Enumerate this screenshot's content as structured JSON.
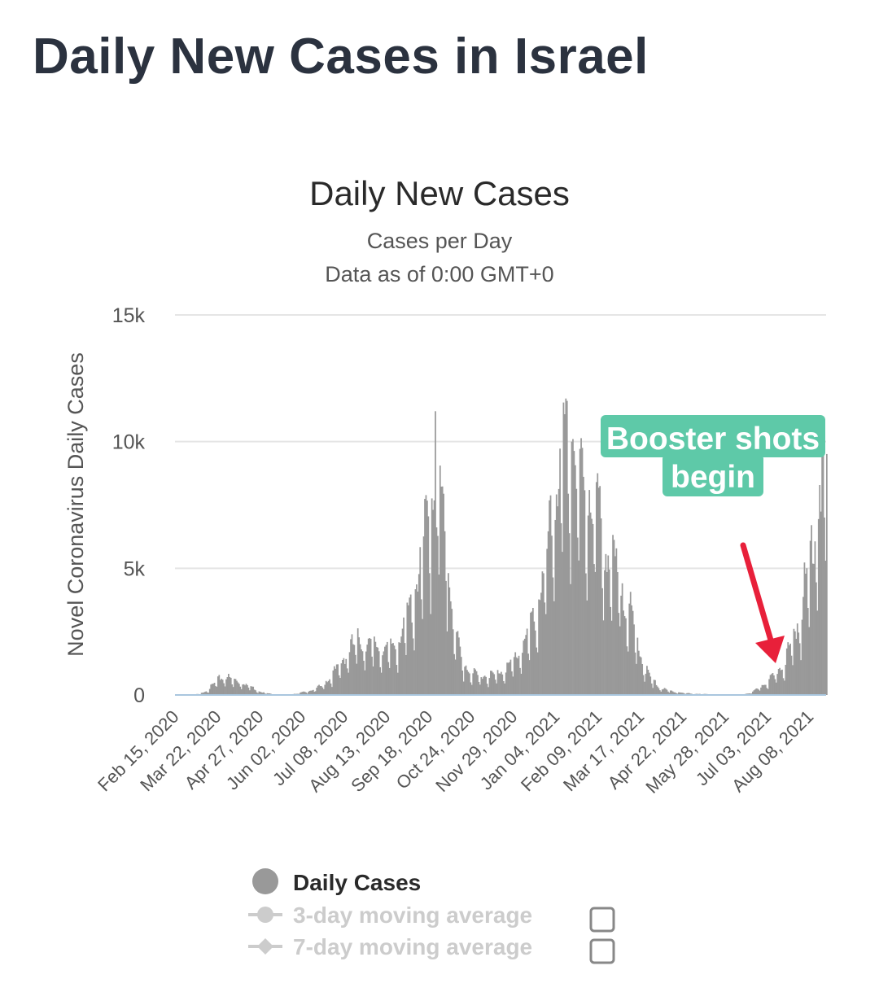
{
  "page": {
    "title": "Daily New Cases in Israel"
  },
  "annotation": {
    "lines": [
      "Booster shots",
      "begin"
    ],
    "callout_color": "#5ec9a8",
    "arrow_color": "#e8203a"
  },
  "legend": {
    "items": [
      {
        "label": "Daily Cases",
        "active": true,
        "color": "#999999"
      },
      {
        "label": "3-day moving average",
        "active": false,
        "color": "#cccccc"
      },
      {
        "label": "7-day moving average",
        "active": false,
        "color": "#cccccc"
      }
    ]
  },
  "chart_data": {
    "type": "bar",
    "title": "Daily New Cases",
    "subtitle": "Cases per Day",
    "subtitle2": "Data as of 0:00 GMT+0",
    "ylabel": "Novel Coronavirus Daily Cases",
    "ylim": [
      0,
      15000
    ],
    "yticks": [
      0,
      5000,
      10000,
      15000
    ],
    "ytick_labels": [
      "0",
      "5k",
      "10k",
      "15k"
    ],
    "x_range": [
      "2020-02-15",
      "2021-08-22"
    ],
    "xtick_labels": [
      "Feb 15, 2020",
      "Mar 22, 2020",
      "Apr 27, 2020",
      "Jun 02, 2020",
      "Jul 08, 2020",
      "Aug 13, 2020",
      "Sep 18, 2020",
      "Oct 24, 2020",
      "Nov 29, 2020",
      "Jan 04, 2021",
      "Feb 09, 2021",
      "Mar 17, 2021",
      "Apr 22, 2021",
      "May 28, 2021",
      "Jul 03, 2021",
      "Aug 08, 2021"
    ],
    "grid": true,
    "bar_color": "#999999",
    "series": [
      {
        "name": "Daily Cases",
        "weekly": [
          {
            "week_of": "2020-02-15",
            "value": 0
          },
          {
            "week_of": "2020-02-22",
            "value": 2
          },
          {
            "week_of": "2020-02-29",
            "value": 10
          },
          {
            "week_of": "2020-03-07",
            "value": 40
          },
          {
            "week_of": "2020-03-14",
            "value": 180
          },
          {
            "week_of": "2020-03-21",
            "value": 470
          },
          {
            "week_of": "2020-03-28",
            "value": 620
          },
          {
            "week_of": "2020-04-04",
            "value": 500
          },
          {
            "week_of": "2020-04-11",
            "value": 420
          },
          {
            "week_of": "2020-04-18",
            "value": 300
          },
          {
            "week_of": "2020-04-25",
            "value": 140
          },
          {
            "week_of": "2020-05-02",
            "value": 60
          },
          {
            "week_of": "2020-05-09",
            "value": 20
          },
          {
            "week_of": "2020-05-16",
            "value": 15
          },
          {
            "week_of": "2020-05-23",
            "value": 20
          },
          {
            "week_of": "2020-05-30",
            "value": 60
          },
          {
            "week_of": "2020-06-06",
            "value": 120
          },
          {
            "week_of": "2020-06-13",
            "value": 200
          },
          {
            "week_of": "2020-06-20",
            "value": 350
          },
          {
            "week_of": "2020-06-27",
            "value": 650
          },
          {
            "week_of": "2020-07-04",
            "value": 1000
          },
          {
            "week_of": "2020-07-11",
            "value": 1450
          },
          {
            "week_of": "2020-07-18",
            "value": 1800
          },
          {
            "week_of": "2020-07-25",
            "value": 1750
          },
          {
            "week_of": "2020-08-01",
            "value": 1650
          },
          {
            "week_of": "2020-08-08",
            "value": 1550
          },
          {
            "week_of": "2020-08-15",
            "value": 1500
          },
          {
            "week_of": "2020-08-22",
            "value": 1750
          },
          {
            "week_of": "2020-08-29",
            "value": 2400
          },
          {
            "week_of": "2020-09-05",
            "value": 3300
          },
          {
            "week_of": "2020-09-12",
            "value": 4600
          },
          {
            "week_of": "2020-09-19",
            "value": 6400
          },
          {
            "week_of": "2020-09-26",
            "value": 7000
          },
          {
            "week_of": "2020-10-03",
            "value": 4500
          },
          {
            "week_of": "2020-10-10",
            "value": 2000
          },
          {
            "week_of": "2020-10-17",
            "value": 1000
          },
          {
            "week_of": "2020-10-24",
            "value": 700
          },
          {
            "week_of": "2020-10-31",
            "value": 620
          },
          {
            "week_of": "2020-11-07",
            "value": 640
          },
          {
            "week_of": "2020-11-14",
            "value": 700
          },
          {
            "week_of": "2020-11-21",
            "value": 850
          },
          {
            "week_of": "2020-11-28",
            "value": 1100
          },
          {
            "week_of": "2020-12-05",
            "value": 1500
          },
          {
            "week_of": "2020-12-12",
            "value": 2100
          },
          {
            "week_of": "2020-12-19",
            "value": 2900
          },
          {
            "week_of": "2020-12-26",
            "value": 4300
          },
          {
            "week_of": "2021-01-02",
            "value": 6300
          },
          {
            "week_of": "2021-01-09",
            "value": 7800
          },
          {
            "week_of": "2021-01-16",
            "value": 8300
          },
          {
            "week_of": "2021-01-23",
            "value": 7300
          },
          {
            "week_of": "2021-01-30",
            "value": 6500
          },
          {
            "week_of": "2021-02-06",
            "value": 6800
          },
          {
            "week_of": "2021-02-13",
            "value": 5000
          },
          {
            "week_of": "2021-02-20",
            "value": 4400
          },
          {
            "week_of": "2021-02-27",
            "value": 3700
          },
          {
            "week_of": "2021-03-06",
            "value": 2900
          },
          {
            "week_of": "2021-03-13",
            "value": 1900
          },
          {
            "week_of": "2021-03-20",
            "value": 900
          },
          {
            "week_of": "2021-03-27",
            "value": 450
          },
          {
            "week_of": "2021-04-03",
            "value": 220
          },
          {
            "week_of": "2021-04-10",
            "value": 140
          },
          {
            "week_of": "2021-04-17",
            "value": 90
          },
          {
            "week_of": "2021-04-24",
            "value": 60
          },
          {
            "week_of": "2021-05-01",
            "value": 40
          },
          {
            "week_of": "2021-05-08",
            "value": 30
          },
          {
            "week_of": "2021-05-15",
            "value": 25
          },
          {
            "week_of": "2021-05-22",
            "value": 20
          },
          {
            "week_of": "2021-05-29",
            "value": 15
          },
          {
            "week_of": "2021-06-05",
            "value": 12
          },
          {
            "week_of": "2021-06-12",
            "value": 18
          },
          {
            "week_of": "2021-06-19",
            "value": 80
          },
          {
            "week_of": "2021-06-26",
            "value": 250
          },
          {
            "week_of": "2021-07-03",
            "value": 450
          },
          {
            "week_of": "2021-07-10",
            "value": 700
          },
          {
            "week_of": "2021-07-17",
            "value": 1100
          },
          {
            "week_of": "2021-07-24",
            "value": 1800
          },
          {
            "week_of": "2021-07-31",
            "value": 2800
          },
          {
            "week_of": "2021-08-07",
            "value": 4300
          },
          {
            "week_of": "2021-08-14",
            "value": 6300
          },
          {
            "week_of": "2021-08-21",
            "value": 7700
          }
        ],
        "peaks": [
          {
            "date": "2020-09-23",
            "value": 11200
          },
          {
            "date": "2021-01-18",
            "value": 10100
          }
        ]
      }
    ]
  }
}
